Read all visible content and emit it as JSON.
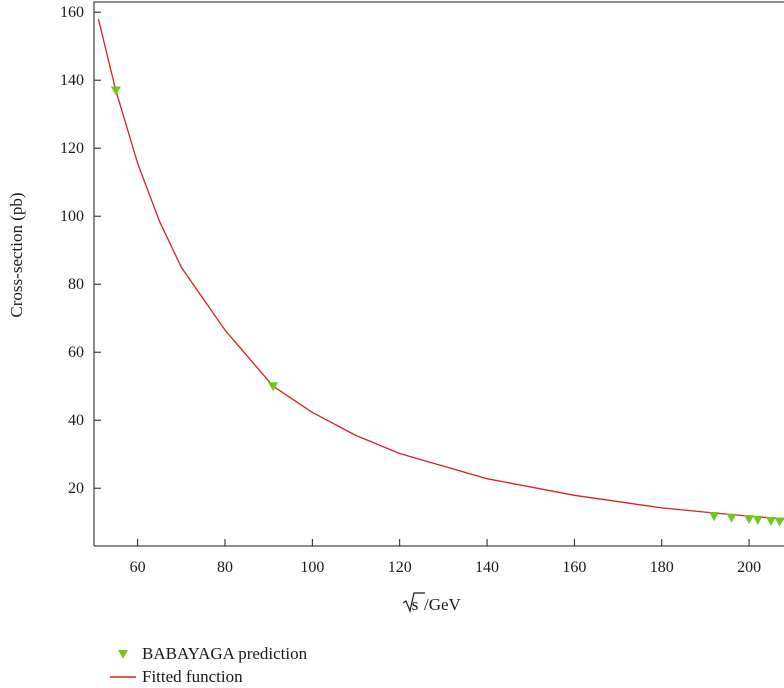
{
  "chart_data": {
    "type": "scatter",
    "xlabel_sqrt": "s",
    "xlabel_suffix": "/GeV",
    "ylabel": "Cross-section (pb)",
    "xlim": [
      50,
      208
    ],
    "ylim": [
      3,
      163
    ],
    "xticks": [
      60,
      80,
      100,
      120,
      140,
      160,
      180,
      200
    ],
    "yticks": [
      20,
      40,
      60,
      80,
      100,
      120,
      140,
      160
    ],
    "grid": false,
    "legend_position": "bottom-left",
    "series": [
      {
        "name": "BABAYAGA prediction",
        "kind": "points",
        "marker": "down-triangle",
        "color": "#76c51f",
        "x": [
          55,
          91,
          192,
          196,
          200,
          202,
          205,
          207
        ],
        "y": [
          137,
          50,
          11.8,
          11.3,
          10.9,
          10.7,
          10.4,
          10.2
        ]
      },
      {
        "name": "Fitted function",
        "kind": "line",
        "color": "#d62020",
        "x": [
          51,
          55,
          60,
          65,
          70,
          80,
          91,
          100,
          110,
          120,
          140,
          160,
          180,
          192,
          200,
          208
        ],
        "y": [
          158,
          137,
          115.5,
          98.5,
          85,
          66.5,
          50,
          42.3,
          35.5,
          30.2,
          22.8,
          17.9,
          14.2,
          12.7,
          11.8,
          10.9
        ]
      }
    ]
  }
}
